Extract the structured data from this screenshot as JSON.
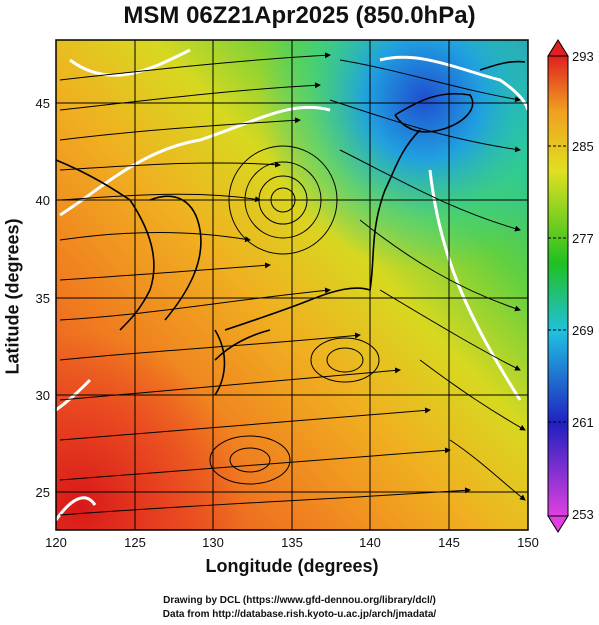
{
  "title": "MSM 06Z21Apr2025 (850.0hPa)",
  "axes": {
    "x_label": "Longitude (degrees)",
    "y_label": "Latitude  (degrees)",
    "x_ticks": [
      "120",
      "125",
      "130",
      "135",
      "140",
      "145",
      "150"
    ],
    "y_ticks": [
      "25",
      "30",
      "35",
      "40",
      "45"
    ],
    "x_range": [
      120,
      150
    ],
    "y_range": [
      22.4,
      47.6
    ]
  },
  "colorbar": {
    "ticks": [
      "293",
      "285",
      "277",
      "269",
      "261",
      "253"
    ],
    "range": [
      253,
      293
    ],
    "colors": [
      "#e040e0",
      "#2020c0",
      "#20c0e0",
      "#20c020",
      "#e0e020",
      "#f0a020",
      "#e02020"
    ]
  },
  "credits": {
    "line1": "Drawing by DCL (https://www.gfd-dennou.org/library/dcl/)",
    "line2": "Data from http://database.rish.kyoto-u.ac.jp/arch/jmadata/"
  },
  "map": {
    "field": "850hPa temperature (shaded) with streamlines",
    "grid": true
  }
}
